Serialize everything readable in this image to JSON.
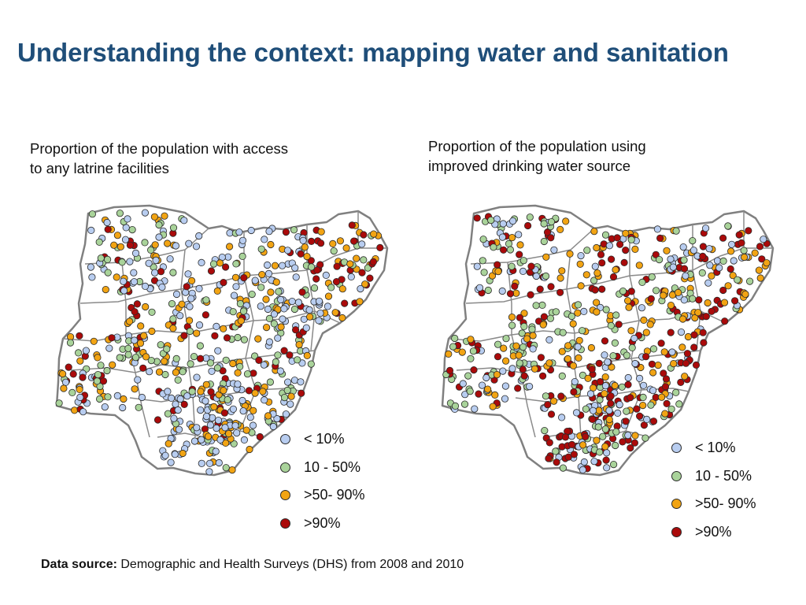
{
  "slide": {
    "title": "Understanding the context: mapping water and sanitation",
    "footer_bold": "Data source:",
    "footer_text": "Demographic and Health Surveys (DHS) from 2008 and 2010"
  },
  "maps": [
    {
      "title_line1": "Proportion of the population with access",
      "title_line2": "to any latrine facilities"
    },
    {
      "title_line1": "Proportion of the population using",
      "title_line2": "improved drinking water source"
    }
  ],
  "legend": {
    "items": [
      {
        "label": "< 10%",
        "color": "#b8cdf0"
      },
      {
        "label": "10 - 50%",
        "color": "#a9d39a"
      },
      {
        "label": ">50- 90%",
        "color": "#f2a413"
      },
      {
        "label": ">90%",
        "color": "#aa0a0a"
      }
    ]
  }
}
